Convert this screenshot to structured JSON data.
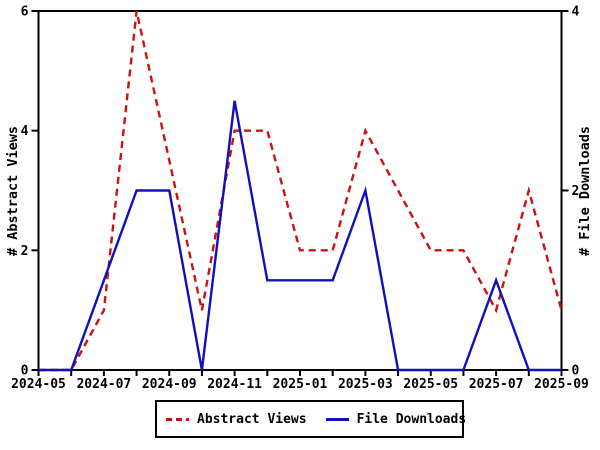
{
  "colors": {
    "abstract_views": "#cc1111",
    "file_downloads": "#1111bb",
    "axis": "#000000",
    "background": "#ffffff"
  },
  "chart_data": {
    "type": "line",
    "title": "",
    "x_categories": [
      "2024-05",
      "2024-06",
      "2024-07",
      "2024-08",
      "2024-09",
      "2024-10",
      "2024-11",
      "2024-12",
      "2025-01",
      "2025-02",
      "2025-03",
      "2025-04",
      "2025-05",
      "2025-06",
      "2025-07",
      "2025-08",
      "2025-09"
    ],
    "x_tick_labels_shown": [
      "2024-05",
      "2024-07",
      "2024-09",
      "2024-11",
      "2025-01",
      "2025-03",
      "2025-05",
      "2025-07",
      "2025-09"
    ],
    "left_axis": {
      "label": "# Abstract Views",
      "min": 0,
      "max": 6,
      "ticks": [
        0,
        2,
        4,
        6
      ]
    },
    "right_axis": {
      "label": "# File Downloads",
      "min": 0,
      "max": 4,
      "ticks": [
        0,
        2,
        4
      ]
    },
    "grid": "off",
    "legend_position": "bottom-center",
    "series": [
      {
        "name": "Abstract Views",
        "axis": "left",
        "color": "#cc1111",
        "style": "dashed",
        "values": [
          0,
          0,
          1,
          6,
          3.5,
          1,
          4,
          4,
          2,
          2,
          4,
          3,
          2,
          2,
          1,
          3,
          1
        ]
      },
      {
        "name": "File Downloads",
        "axis": "right",
        "color": "#1111bb",
        "style": "solid",
        "values": [
          0,
          0,
          1,
          2,
          2,
          0,
          3,
          1,
          1,
          1,
          2,
          0,
          0,
          0,
          1,
          0,
          0
        ]
      }
    ]
  }
}
